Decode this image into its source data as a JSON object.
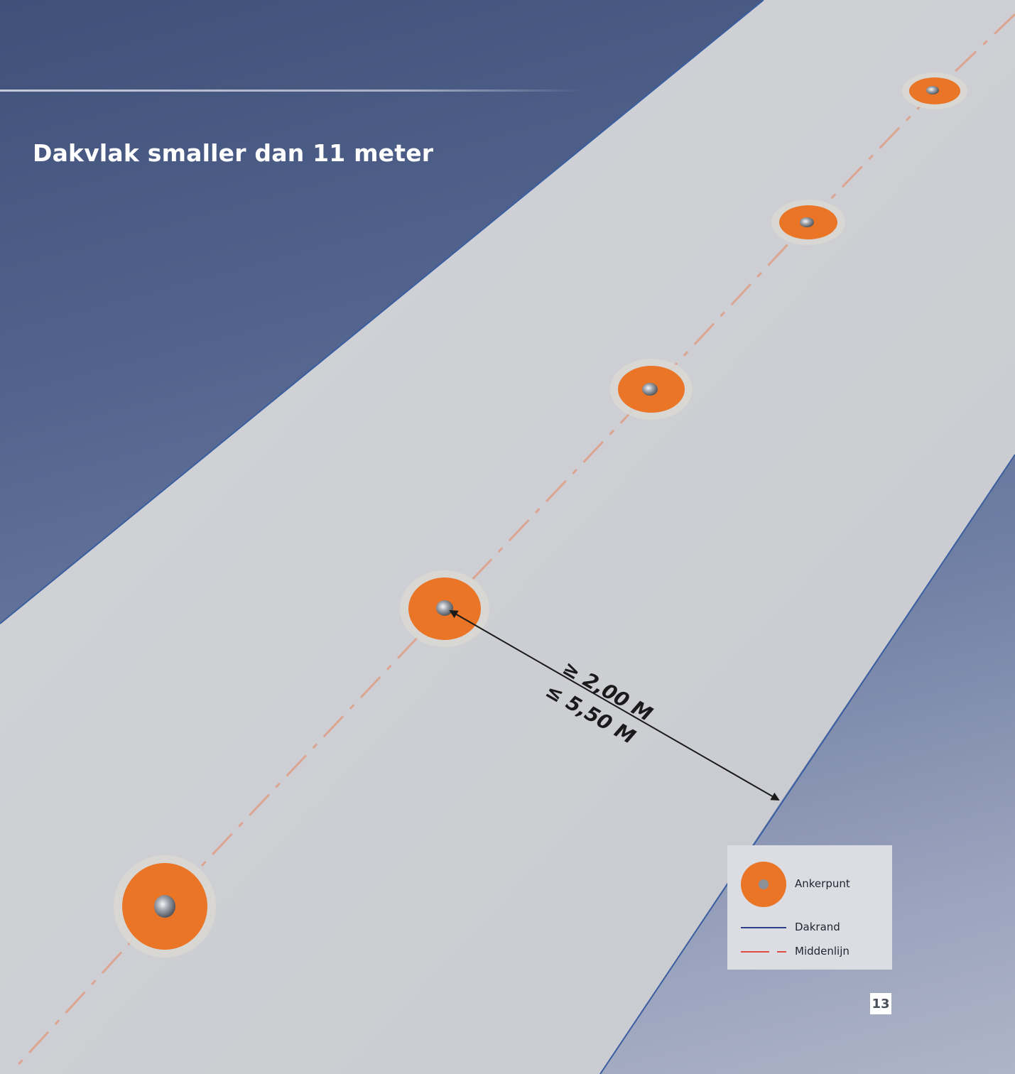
{
  "title": "Dakvlak smaller dan 11 meter",
  "dimension": {
    "min_label": "≥ 2,00 M",
    "max_label": "≤ 5,50 M"
  },
  "legend": {
    "anchor_label": "Ankerpunt",
    "roof_edge_label": "Dakrand",
    "centerline_label": "Middenlijn"
  },
  "colors": {
    "anchor": "#ea7526",
    "roof_edge": "#2c3f88",
    "centerline": "#de4a44",
    "roof_surface": "#cdcfd3",
    "sky": "#42527b"
  },
  "page_number": "13"
}
